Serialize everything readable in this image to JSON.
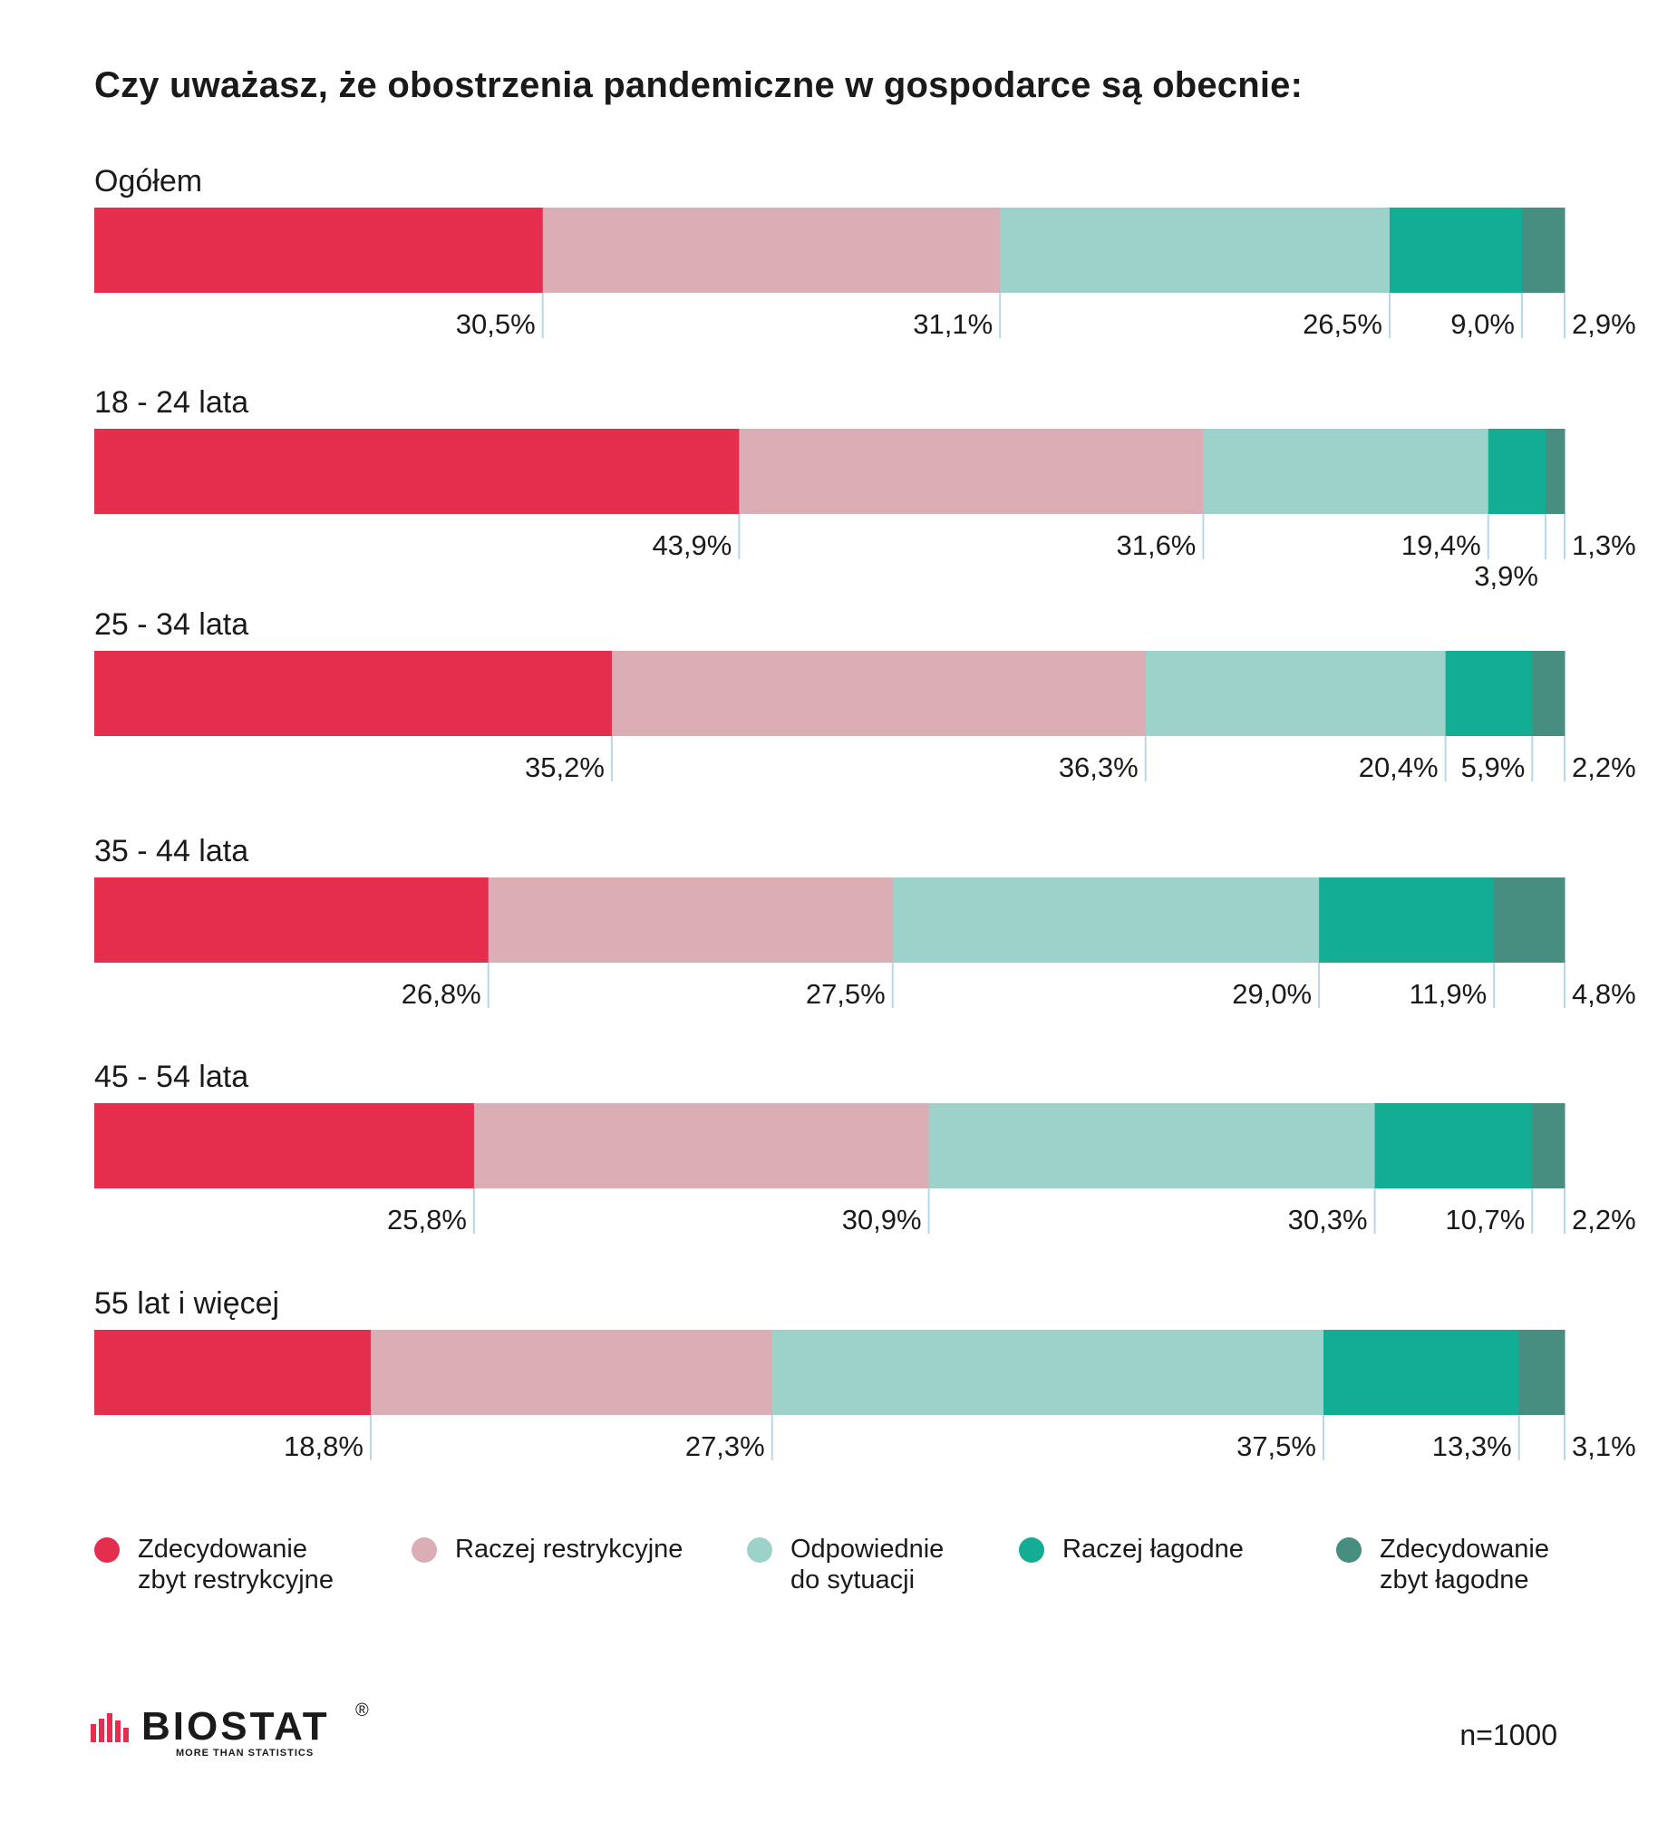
{
  "chart_data": {
    "type": "bar",
    "orientation": "horizontal",
    "stacked": true,
    "normalized_100_percent": true,
    "title": "Czy uważasz, że obostrzenia pandemiczne w gospodarce są obecnie:",
    "categories": [
      "Ogółem",
      "18 - 24 lata",
      "25 - 34 lata",
      "35 - 44 lata",
      "45 - 54 lata",
      "55 lat i więcej"
    ],
    "series": [
      {
        "name": "Zdecydowanie\nzbyt restrykcyjne",
        "color": "#e52d4e",
        "values": [
          30.5,
          43.9,
          35.2,
          26.8,
          25.8,
          18.8
        ],
        "labels": [
          "30,5%",
          "43,9%",
          "35,2%",
          "26,8%",
          "25,8%",
          "18,8%"
        ]
      },
      {
        "name": "Raczej restrykcyjne",
        "color": "#dbadb5",
        "values": [
          31.1,
          31.6,
          36.3,
          27.5,
          30.9,
          27.3
        ],
        "labels": [
          "31,1%",
          "31,6%",
          "36,3%",
          "27,5%",
          "30,9%",
          "27,3%"
        ]
      },
      {
        "name": "Odpowiednie\ndo sytuacji",
        "color": "#9dd2cb",
        "values": [
          26.5,
          19.4,
          20.4,
          29.0,
          30.3,
          37.5
        ],
        "labels": [
          "26,5%",
          "19,4%",
          "20,4%",
          "29,0%",
          "30,3%",
          "37,5%"
        ]
      },
      {
        "name": "Raczej łagodne",
        "color": "#13ad93",
        "values": [
          9.0,
          3.9,
          5.9,
          11.9,
          10.7,
          13.3
        ],
        "labels": [
          "9,0%",
          "3,9%",
          "5,9%",
          "11,9%",
          "10,7%",
          "13,3%"
        ]
      },
      {
        "name": "Zdecydowanie\nzbyt łagodne",
        "color": "#478e81",
        "values": [
          2.9,
          1.3,
          2.2,
          4.8,
          2.2,
          3.1
        ],
        "labels": [
          "2,9%",
          "1,3%",
          "2,2%",
          "4,8%",
          "2,2%",
          "3,1%"
        ]
      }
    ],
    "legend_position": "bottom",
    "grid": false
  },
  "footer": {
    "logo_text": "BIOSTAT",
    "logo_tagline": "MORE THAN STATISTICS",
    "logo_registered": "®",
    "sample_size": "n=1000"
  }
}
